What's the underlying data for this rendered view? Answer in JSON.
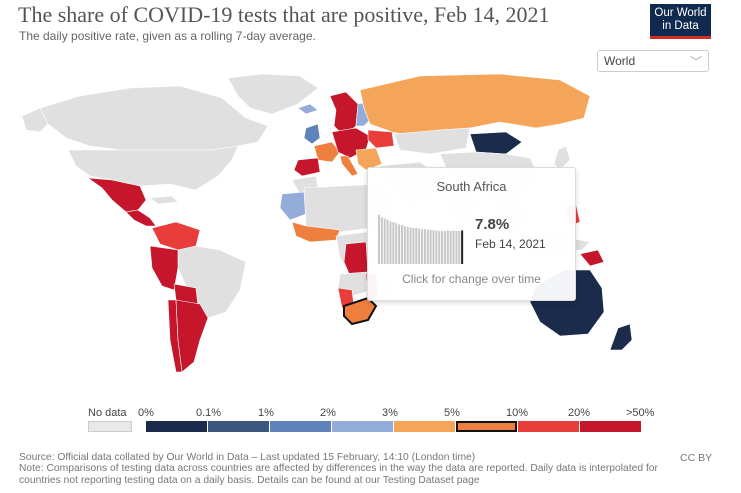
{
  "title": "The share of COVID-19 tests that are positive, Feb 14, 2021",
  "subtitle": "The daily positive rate, given as a rolling 7-day average.",
  "logo": {
    "line1": "Our World",
    "line2": "in Data"
  },
  "region_select": {
    "value": "World"
  },
  "tooltip": {
    "country": "South Africa",
    "value": "7.8%",
    "date": "Feb 14, 2021",
    "cta": "Click for change over time",
    "trend_values": [
      0.82,
      0.78,
      0.76,
      0.74,
      0.71,
      0.7,
      0.68,
      0.66,
      0.65,
      0.63,
      0.62,
      0.61,
      0.6,
      0.6,
      0.59,
      0.58,
      0.58,
      0.57,
      0.57,
      0.56,
      0.56,
      0.55,
      0.55,
      0.55,
      0.56,
      0.55,
      0.56,
      0.55,
      0.55,
      0.56
    ]
  },
  "legend": {
    "nodata_label": "No data",
    "bins": [
      {
        "from": "0%",
        "color": "#1a2b4c"
      },
      {
        "from": "0.1%",
        "color": "#3b5780"
      },
      {
        "from": "1%",
        "color": "#5f82b8"
      },
      {
        "from": "2%",
        "color": "#93acd9"
      },
      {
        "from": "3%",
        "color": "#f4a55a"
      },
      {
        "from": "5%",
        "color": "#ee7f3e",
        "active": true
      },
      {
        "from": "10%",
        "color": "#e83d3a"
      },
      {
        "from": "20%",
        "color": "#c5162b"
      }
    ],
    "last_label": ">50%"
  },
  "colors": {
    "no_data": "#e0e0e0",
    "bin_0": "#1a2b4c",
    "bin_2": "#93acd9",
    "bin_3": "#f4a55a",
    "bin_4": "#ee7f3e",
    "bin_5": "#e83d3a",
    "bin_6": "#c5162b"
  },
  "footer": {
    "source": "Source: Official data collated by Our World in Data – Last updated 15 February, 14:10 (London time)",
    "note": "Note: Comparisons of testing data across countries are affected by differences in the way the data are reported. Daily data is interpolated for countries not reporting testing data on a daily basis. Details can be found at our Testing Dataset page",
    "license": "CC BY"
  }
}
